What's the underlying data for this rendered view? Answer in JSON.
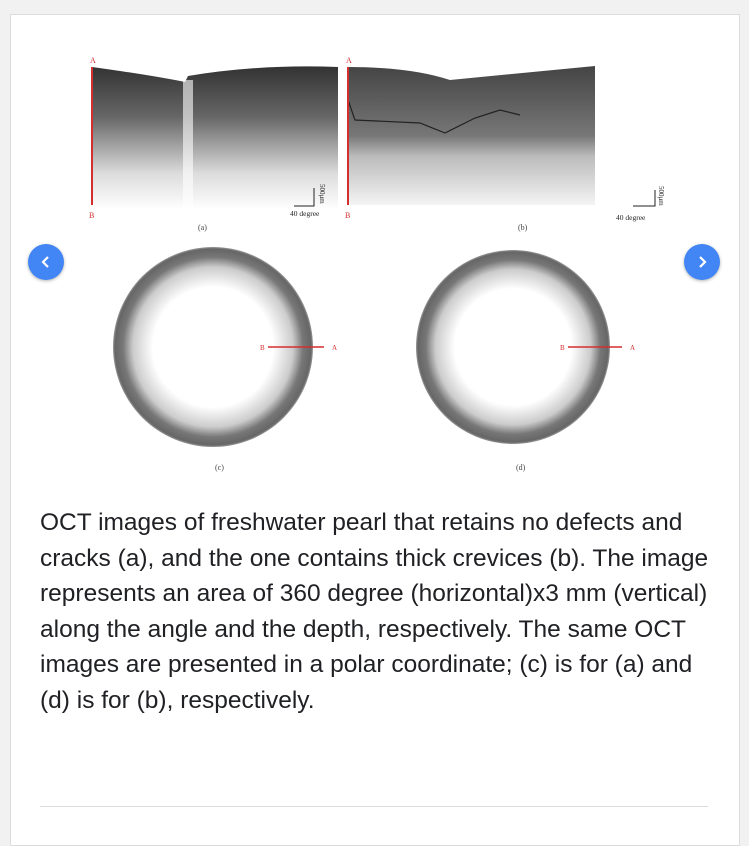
{
  "figure": {
    "panel_labels": [
      "(a)",
      "(b)",
      "(c)",
      "(d)"
    ],
    "marker_a": "A",
    "marker_b": "B",
    "scale_horizontal": "40 degree",
    "scale_vertical": "500μm",
    "marker_color": "#d32f2f"
  },
  "nav": {
    "prev_icon": "chevron-left-icon",
    "next_icon": "chevron-right-icon",
    "accent": "#4285f4"
  },
  "caption": "OCT images of freshwater pearl that retains no defects and cracks (a), and the one contains thick crevices (b). The image represents an area of 360 degree (horizontal)x3 mm (vertical) along the angle and the depth, respectively. The same OCT images are presented in a polar coordinate; (c) is for (a) and (d) is for (b), respectively."
}
